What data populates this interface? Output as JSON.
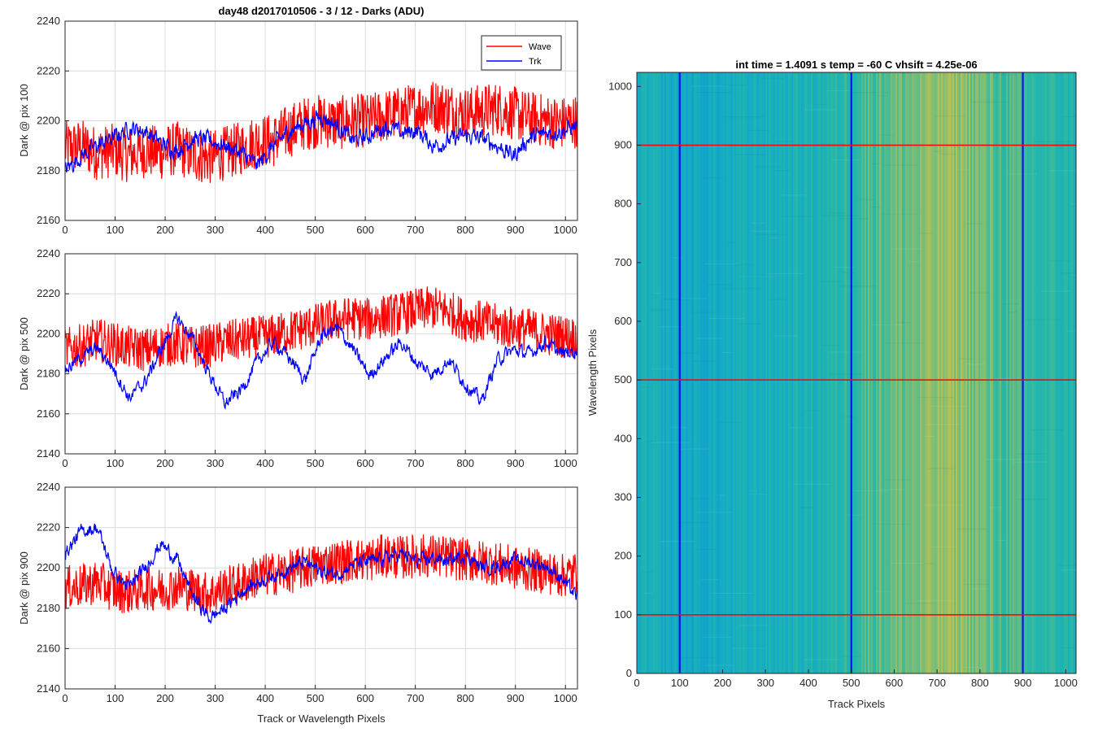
{
  "figure_title": "day48 d2017010506 - 3 / 12 - Darks (ADU)",
  "x_label": "Track or Wavelength Pixels",
  "legend": [
    "Wave",
    "Trk"
  ],
  "colors": {
    "wave": "#ff0000",
    "trk": "#0000ff",
    "grid": "#dcdcdc",
    "axis": "#262626"
  },
  "subplot_ylabels": [
    "Dark @ pix 100",
    "Dark @ pix 500",
    "Dark @ pix 900"
  ],
  "image_panel": {
    "title": "int time = 1.4091 s    temp = -60 C    vhsift = 4.25e-06",
    "xlabel": "Track Pixels",
    "ylabel": "Wavelength Pixels"
  },
  "chart_data": [
    {
      "type": "line",
      "title": "day48 d2017010506 - 3 / 12 - Darks (ADU)",
      "xlabel": "",
      "ylabel": "Dark @ pix 100",
      "xlim": [
        0,
        1024
      ],
      "ylim": [
        2160,
        2240
      ],
      "xticks": [
        0,
        100,
        200,
        300,
        400,
        500,
        600,
        700,
        800,
        900,
        1000
      ],
      "yticks": [
        2160,
        2180,
        2200,
        2220,
        2240
      ],
      "grid": true,
      "legend_position": "top-right",
      "series": [
        {
          "name": "Wave",
          "color": "#ff0000",
          "x": [
            0,
            32,
            64,
            96,
            128,
            160,
            192,
            224,
            256,
            288,
            320,
            352,
            384,
            416,
            448,
            480,
            512,
            544,
            576,
            608,
            640,
            672,
            704,
            736,
            768,
            800,
            832,
            864,
            896,
            928,
            960,
            992,
            1024
          ],
          "y": [
            2189,
            2190,
            2187,
            2188,
            2186,
            2188,
            2187,
            2189,
            2186,
            2185,
            2187,
            2189,
            2192,
            2192,
            2196,
            2199,
            2200,
            2199,
            2200,
            2200,
            2202,
            2203,
            2205,
            2206,
            2205,
            2203,
            2204,
            2205,
            2203,
            2201,
            2200,
            2199,
            2200
          ]
        },
        {
          "name": "Trk",
          "color": "#0000ff",
          "x": [
            0,
            32,
            64,
            96,
            128,
            160,
            192,
            224,
            256,
            288,
            320,
            352,
            384,
            416,
            448,
            480,
            512,
            544,
            576,
            608,
            640,
            672,
            704,
            736,
            768,
            800,
            832,
            864,
            896,
            928,
            960,
            992,
            1024
          ],
          "y": [
            2180,
            2186,
            2190,
            2193,
            2197,
            2196,
            2191,
            2188,
            2193,
            2192,
            2190,
            2187,
            2182,
            2190,
            2196,
            2199,
            2202,
            2198,
            2192,
            2194,
            2198,
            2195,
            2196,
            2190,
            2192,
            2194,
            2193,
            2190,
            2186,
            2193,
            2195,
            2196,
            2198
          ]
        }
      ]
    },
    {
      "type": "line",
      "xlabel": "",
      "ylabel": "Dark @ pix 500",
      "xlim": [
        0,
        1024
      ],
      "ylim": [
        2140,
        2240
      ],
      "xticks": [
        0,
        100,
        200,
        300,
        400,
        500,
        600,
        700,
        800,
        900,
        1000
      ],
      "yticks": [
        2140,
        2160,
        2180,
        2200,
        2220,
        2240
      ],
      "grid": true,
      "series": [
        {
          "name": "Wave",
          "color": "#ff0000",
          "x": [
            0,
            32,
            64,
            96,
            128,
            160,
            192,
            224,
            256,
            288,
            320,
            352,
            384,
            416,
            448,
            480,
            512,
            544,
            576,
            608,
            640,
            672,
            704,
            736,
            768,
            800,
            832,
            864,
            896,
            928,
            960,
            992,
            1024
          ],
          "y": [
            2192,
            2194,
            2197,
            2195,
            2193,
            2192,
            2194,
            2195,
            2193,
            2194,
            2196,
            2197,
            2198,
            2199,
            2201,
            2203,
            2205,
            2207,
            2208,
            2207,
            2209,
            2210,
            2212,
            2213,
            2211,
            2207,
            2206,
            2204,
            2203,
            2202,
            2200,
            2199,
            2198
          ]
        },
        {
          "name": "Trk",
          "color": "#0000ff",
          "x": [
            0,
            32,
            64,
            96,
            128,
            160,
            192,
            224,
            256,
            288,
            320,
            352,
            384,
            416,
            448,
            480,
            512,
            544,
            576,
            608,
            640,
            672,
            704,
            736,
            768,
            800,
            832,
            864,
            896,
            928,
            960,
            992,
            1024
          ],
          "y": [
            2182,
            2188,
            2193,
            2183,
            2168,
            2176,
            2192,
            2208,
            2197,
            2180,
            2165,
            2172,
            2186,
            2196,
            2188,
            2177,
            2199,
            2203,
            2192,
            2179,
            2188,
            2196,
            2185,
            2180,
            2187,
            2175,
            2166,
            2187,
            2192,
            2190,
            2196,
            2190,
            2192
          ]
        }
      ]
    },
    {
      "type": "line",
      "xlabel": "Track or Wavelength Pixels",
      "ylabel": "Dark @ pix 900",
      "xlim": [
        0,
        1024
      ],
      "ylim": [
        2140,
        2240
      ],
      "xticks": [
        0,
        100,
        200,
        300,
        400,
        500,
        600,
        700,
        800,
        900,
        1000
      ],
      "yticks": [
        2140,
        2160,
        2180,
        2200,
        2220,
        2240
      ],
      "grid": true,
      "series": [
        {
          "name": "Wave",
          "color": "#ff0000",
          "x": [
            0,
            32,
            64,
            96,
            128,
            160,
            192,
            224,
            256,
            288,
            320,
            352,
            384,
            416,
            448,
            480,
            512,
            544,
            576,
            608,
            640,
            672,
            704,
            736,
            768,
            800,
            832,
            864,
            896,
            928,
            960,
            992,
            1024
          ],
          "y": [
            2190,
            2191,
            2193,
            2189,
            2188,
            2190,
            2189,
            2191,
            2189,
            2187,
            2190,
            2192,
            2196,
            2197,
            2198,
            2200,
            2202,
            2203,
            2204,
            2204,
            2206,
            2205,
            2206,
            2206,
            2205,
            2204,
            2203,
            2202,
            2200,
            2199,
            2198,
            2196,
            2198
          ]
        },
        {
          "name": "Trk",
          "color": "#0000ff",
          "x": [
            0,
            32,
            64,
            96,
            128,
            160,
            192,
            224,
            256,
            288,
            320,
            352,
            384,
            416,
            448,
            480,
            512,
            544,
            576,
            608,
            640,
            672,
            704,
            736,
            768,
            800,
            832,
            864,
            896,
            928,
            960,
            992,
            1024
          ],
          "y": [
            2207,
            2218,
            2220,
            2198,
            2190,
            2200,
            2212,
            2204,
            2186,
            2175,
            2180,
            2188,
            2193,
            2196,
            2200,
            2203,
            2198,
            2197,
            2202,
            2203,
            2205,
            2207,
            2203,
            2205,
            2203,
            2207,
            2200,
            2201,
            2204,
            2203,
            2201,
            2195,
            2185
          ]
        }
      ]
    },
    {
      "type": "heatmap",
      "title": "int time = 1.4091 s    temp = -60 C    vhsift = 4.25e-06",
      "xlabel": "Track Pixels",
      "ylabel": "Wavelength Pixels",
      "xlim": [
        0,
        1024
      ],
      "ylim": [
        0,
        1024
      ],
      "xticks": [
        0,
        100,
        200,
        300,
        400,
        500,
        600,
        700,
        800,
        900,
        1000
      ],
      "yticks": [
        0,
        100,
        200,
        300,
        400,
        500,
        600,
        700,
        800,
        900,
        1000
      ],
      "column_profile": {
        "x": [
          0,
          50,
          100,
          150,
          200,
          250,
          300,
          350,
          400,
          450,
          500,
          550,
          600,
          650,
          700,
          750,
          800,
          850,
          900,
          950,
          1024
        ],
        "level": [
          0.45,
          0.4,
          0.35,
          0.36,
          0.38,
          0.42,
          0.44,
          0.46,
          0.48,
          0.52,
          0.6,
          0.7,
          0.72,
          0.75,
          0.82,
          0.84,
          0.74,
          0.66,
          0.62,
          0.56,
          0.52
        ]
      },
      "marker_lines": {
        "vertical": {
          "x": [
            100,
            500,
            900
          ],
          "color": "#0000ff"
        },
        "horizontal": {
          "y": [
            100,
            500,
            900
          ],
          "color": "#ff0000"
        }
      }
    }
  ]
}
